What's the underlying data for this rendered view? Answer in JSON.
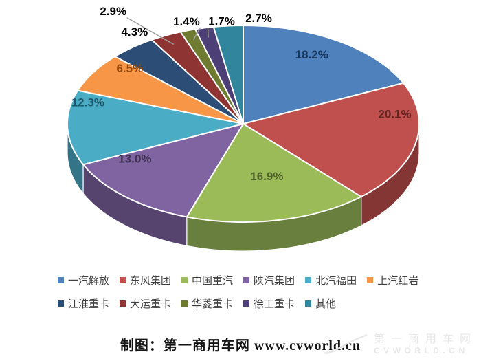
{
  "chart_data": {
    "type": "pie",
    "style": "3d-pie",
    "title": "",
    "legend_position": "bottom",
    "start_angle_deg": -90,
    "direction": "clockwise",
    "slices": [
      {
        "name": "一汽解放",
        "value": 18.2,
        "display": "18.2%",
        "color": "#4F81BD",
        "label_color": "#17375E",
        "label_placement": "inside",
        "leader": false
      },
      {
        "name": "东风集团",
        "value": 20.1,
        "display": "20.1%",
        "color": "#C0504D",
        "label_color": "#632423",
        "label_placement": "inside",
        "leader": false
      },
      {
        "name": "中国重汽",
        "value": 16.9,
        "display": "16.9%",
        "color": "#9BBB59",
        "label_color": "#4F6228",
        "label_placement": "inside",
        "leader": false
      },
      {
        "name": "陕汽集团",
        "value": 13.0,
        "display": "13.0%",
        "color": "#8064A2",
        "label_color": "#3F3151",
        "label_placement": "inside",
        "leader": false
      },
      {
        "name": "北汽福田",
        "value": 12.3,
        "display": "12.3%",
        "color": "#4BACC6",
        "label_color": "#215968",
        "label_placement": "inside",
        "leader": false
      },
      {
        "name": "上汽红岩",
        "value": 6.5,
        "display": "6.5%",
        "color": "#F79646",
        "label_color": "#974706",
        "label_placement": "inside",
        "leader": false
      },
      {
        "name": "江淮重卡",
        "value": 4.3,
        "display": "4.3%",
        "color": "#2C4D75",
        "label_color": "#000000",
        "label_placement": "outside",
        "leader": false
      },
      {
        "name": "大运重卡",
        "value": 2.9,
        "display": "2.9%",
        "color": "#8E3432",
        "label_color": "#000000",
        "label_placement": "outside",
        "leader": true
      },
      {
        "name": "华菱重卡",
        "value": 1.4,
        "display": "1.4%",
        "color": "#6E7B31",
        "label_color": "#000000",
        "label_placement": "outside",
        "leader": true
      },
      {
        "name": "徐工重卡",
        "value": 1.7,
        "display": "1.7%",
        "color": "#4D4077",
        "label_color": "#000000",
        "label_placement": "outside",
        "leader": true
      },
      {
        "name": "其他",
        "value": 2.7,
        "display": "2.7%",
        "color": "#31859C",
        "label_color": "#000000",
        "label_placement": "outside",
        "leader": false
      }
    ],
    "legend_rows": [
      6,
      5
    ],
    "slice_border_color": "#FFFFFF",
    "leader_line_color": "#A0A0A0"
  },
  "caption": {
    "text": "制图：第一商用车网 www.cvworld.cn"
  },
  "watermark": {
    "line1": "第一商用车网",
    "line2": "CVWORLD.CN"
  }
}
